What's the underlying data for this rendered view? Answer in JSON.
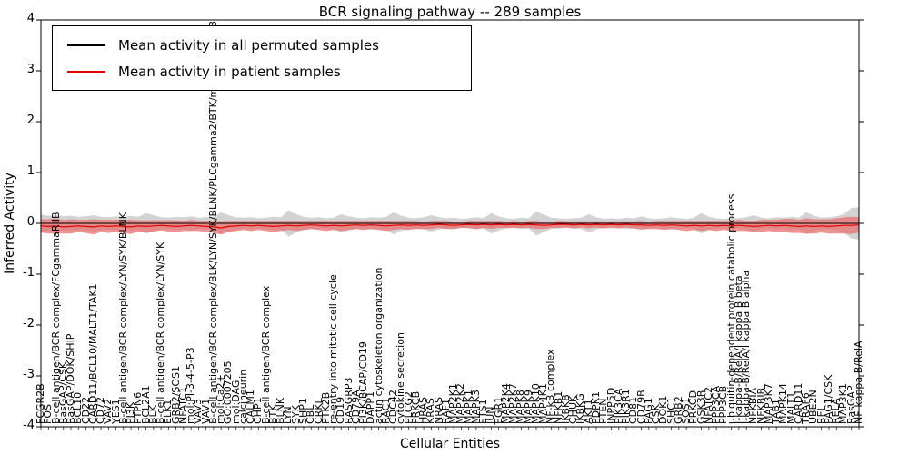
{
  "title": "BCR signaling pathway -- 289 samples",
  "axes": {
    "xlabel": "Cellular Entities",
    "ylabel": "Inferred Activity",
    "yticks": [
      4,
      3,
      2,
      1,
      0,
      -1,
      -2,
      -3,
      -4
    ],
    "ylim": [
      -4,
      4
    ]
  },
  "legend": [
    {
      "label": "Mean activity in all permuted samples",
      "color": "#000000"
    },
    {
      "label": "Mean activity in patient samples",
      "color": "#e00000"
    }
  ],
  "chart_data": {
    "type": "line",
    "title": "BCR signaling pathway -- 289 samples",
    "xlabel": "Cellular Entities",
    "ylabel": "Inferred Activity",
    "ylim": [
      -4,
      4
    ],
    "grid": false,
    "legend_position": "upper left",
    "categories": [
      "FCGR2B",
      "FOS",
      "B-cell antigen/BCR complex/FCgammaRIIB",
      "RasGAP/CSK",
      "RasGAP/DOK/SHIP",
      "BCL10",
      "CD22",
      "CARD11/BCL10/MALT1/TAK1",
      "CD72",
      "VAV2",
      "YES1",
      "B-cell antigen/BCR complex/LYN/SYK/BLNK",
      "PI3K",
      "PTPN6",
      "BCL2A1",
      "BLK",
      "B-cell antigen/BCR complex/LYN/SYK",
      "ELK1",
      "GRB2/SOS1",
      "NFATC1",
      "mol:PI-3-4-5-P3",
      "VAV3",
      "VAV1",
      "B-cell antigen/BCR complex/BLK/LYN/SYK/BLNK/PLCgamma2/BTK/mol:PI-3-4-5-P3",
      "mol:Ca2+",
      "GO:0007205",
      "mol:DAG",
      "calcineurin",
      "CALM1",
      "CHP1",
      "B-cell antigen/BCR complex",
      "BTK",
      "BLNK",
      "LYN",
      "SYK",
      "SHP1",
      "CBL",
      "CRKL",
      "PTK2B",
      "re-entry into mitotic cell cycle",
      "CD19",
      "RASGRP3",
      "CD79A",
      "PI3K/BCAP/CD19",
      "DAPP1",
      "actin cytoskeleton organization",
      "RAC1",
      "CDC42",
      "cytokine secretion",
      "PLCG2",
      "PRKCB",
      "HRAS",
      "KRAS",
      "NRAS",
      "RAF1",
      "MAP2K1",
      "MAP2K2",
      "MAPK1",
      "MAPK3",
      "ETS1",
      "JUN",
      "EGR1",
      "MAP2K4",
      "MAP2K7",
      "MAPK8",
      "MAPK9",
      "MAPK10",
      "MAP4K1",
      "NF-kB complex",
      "NFKB1",
      "IKBKB",
      "CHUK",
      "IKBKG",
      "AKT1",
      "PDPK1",
      "PTEN",
      "INPP5D",
      "PIK3CA",
      "PIK3R1",
      "CD81",
      "CD79B",
      "PAG1",
      "CSK",
      "DOK1",
      "SHC1",
      "GRB2",
      "SOS1",
      "PRKCD",
      "GSK3B",
      "NFATC2",
      "PPP3CA",
      "PPP3CB",
      "ubiquitin-dependent protein catabolic process",
      "I-kappa-B/RelA/I kappa B beta",
      "I-kappa-B/RelA/I kappa B alpha",
      "NFKBIA",
      "NFKBIB",
      "MAP3K7",
      "TAB1",
      "MAPK14",
      "MALT1",
      "CARD11",
      "TRAF6",
      "UBE2N",
      "REL",
      "PAG1/CSK",
      "RELA",
      "MAP3K1",
      "RasGAP",
      "NF-kappa-B/RelA"
    ],
    "series": [
      {
        "name": "Mean activity in all permuted samples",
        "color": "#000000",
        "band_color": "#c8c8c8",
        "values": [
          0,
          0,
          0,
          0,
          0,
          0,
          0,
          0,
          0,
          0,
          0,
          0,
          0,
          0,
          0,
          0,
          0,
          0,
          0,
          0,
          0,
          0,
          0,
          0,
          0,
          0,
          0,
          0,
          0,
          0,
          0,
          0,
          0,
          0,
          0,
          0,
          0,
          0,
          0,
          0,
          0,
          0,
          0,
          0,
          0,
          0,
          0,
          0,
          0,
          0,
          0,
          0,
          0,
          0,
          0,
          0,
          0,
          0,
          0,
          0,
          0,
          0,
          0,
          0,
          0,
          0,
          0,
          0,
          0,
          0,
          0,
          0,
          0,
          0,
          0,
          0,
          0,
          0,
          0,
          0,
          0,
          0,
          0,
          0,
          0,
          0,
          0,
          0,
          0,
          0,
          0,
          0,
          0,
          0,
          0,
          0,
          0,
          0,
          0,
          0,
          0,
          0,
          0,
          0,
          0,
          0,
          0,
          0,
          0,
          0
        ],
        "band": [
          0.17,
          0.15,
          0.16,
          0.14,
          0.15,
          0.13,
          0.14,
          0.16,
          0.13,
          0.12,
          0.14,
          0.12,
          0.15,
          0.13,
          0.2,
          0.16,
          0.12,
          0.11,
          0.13,
          0.12,
          0.14,
          0.11,
          0.12,
          0.13,
          0.22,
          0.16,
          0.12,
          0.11,
          0.12,
          0.1,
          0.11,
          0.13,
          0.12,
          0.26,
          0.18,
          0.13,
          0.11,
          0.12,
          0.1,
          0.11,
          0.18,
          0.14,
          0.11,
          0.1,
          0.12,
          0.11,
          0.13,
          0.22,
          0.15,
          0.11,
          0.1,
          0.12,
          0.16,
          0.12,
          0.1,
          0.11,
          0.09,
          0.1,
          0.12,
          0.1,
          0.2,
          0.14,
          0.1,
          0.09,
          0.11,
          0.1,
          0.24,
          0.17,
          0.11,
          0.1,
          0.09,
          0.1,
          0.11,
          0.18,
          0.12,
          0.09,
          0.1,
          0.09,
          0.11,
          0.1,
          0.14,
          0.1,
          0.09,
          0.1,
          0.12,
          0.1,
          0.09,
          0.11,
          0.2,
          0.13,
          0.1,
          0.09,
          0.11,
          0.1,
          0.12,
          0.16,
          0.11,
          0.1,
          0.12,
          0.11,
          0.13,
          0.11,
          0.22,
          0.15,
          0.11,
          0.12,
          0.14,
          0.18,
          0.3,
          0.32
        ]
      },
      {
        "name": "Mean activity in patient samples",
        "color": "#e00000",
        "band_color": "#e87070",
        "values": [
          -0.05,
          -0.06,
          -0.05,
          -0.07,
          -0.06,
          -0.05,
          -0.06,
          -0.07,
          -0.05,
          -0.06,
          -0.05,
          -0.06,
          -0.07,
          -0.05,
          -0.06,
          -0.05,
          -0.04,
          -0.05,
          -0.06,
          -0.05,
          -0.04,
          -0.05,
          -0.06,
          -0.07,
          -0.09,
          -0.06,
          -0.05,
          -0.04,
          -0.05,
          -0.04,
          -0.05,
          -0.06,
          -0.05,
          -0.04,
          -0.05,
          -0.04,
          -0.03,
          -0.04,
          -0.05,
          -0.04,
          -0.05,
          -0.04,
          -0.03,
          -0.04,
          -0.03,
          -0.04,
          -0.05,
          -0.04,
          -0.03,
          -0.04,
          -0.03,
          -0.04,
          -0.03,
          -0.02,
          -0.03,
          -0.04,
          -0.03,
          -0.02,
          -0.03,
          -0.02,
          -0.03,
          -0.02,
          -0.03,
          -0.02,
          -0.03,
          -0.02,
          -0.03,
          -0.04,
          -0.03,
          -0.02,
          -0.02,
          -0.03,
          -0.02,
          -0.03,
          -0.02,
          -0.03,
          -0.02,
          -0.03,
          -0.02,
          -0.03,
          -0.03,
          -0.04,
          -0.03,
          -0.04,
          -0.03,
          -0.04,
          -0.05,
          -0.04,
          -0.05,
          -0.04,
          -0.05,
          -0.04,
          -0.05,
          -0.04,
          -0.05,
          -0.06,
          -0.05,
          -0.04,
          -0.05,
          -0.04,
          -0.05,
          -0.06,
          -0.05,
          -0.06,
          -0.05,
          -0.06,
          -0.05,
          -0.04,
          -0.04,
          -0.03
        ],
        "band": [
          0.13,
          0.14,
          0.15,
          0.13,
          0.14,
          0.12,
          0.13,
          0.15,
          0.12,
          0.13,
          0.12,
          0.13,
          0.14,
          0.11,
          0.12,
          0.11,
          0.1,
          0.11,
          0.12,
          0.1,
          0.11,
          0.1,
          0.11,
          0.12,
          0.13,
          0.11,
          0.1,
          0.09,
          0.1,
          0.09,
          0.1,
          0.11,
          0.1,
          0.09,
          0.1,
          0.09,
          0.08,
          0.09,
          0.1,
          0.09,
          0.1,
          0.09,
          0.08,
          0.09,
          0.08,
          0.09,
          0.1,
          0.09,
          0.08,
          0.09,
          0.08,
          0.07,
          0.08,
          0.07,
          0.08,
          0.07,
          0.06,
          0.07,
          0.08,
          0.07,
          0.08,
          0.07,
          0.06,
          0.07,
          0.06,
          0.07,
          0.08,
          0.07,
          0.06,
          0.07,
          0.06,
          0.07,
          0.06,
          0.07,
          0.06,
          0.07,
          0.06,
          0.07,
          0.06,
          0.07,
          0.08,
          0.07,
          0.08,
          0.09,
          0.08,
          0.09,
          0.1,
          0.09,
          0.1,
          0.09,
          0.1,
          0.09,
          0.1,
          0.11,
          0.1,
          0.11,
          0.12,
          0.11,
          0.12,
          0.13,
          0.14,
          0.13,
          0.15,
          0.14,
          0.13,
          0.14,
          0.15,
          0.16,
          0.17,
          0.15
        ]
      }
    ]
  }
}
